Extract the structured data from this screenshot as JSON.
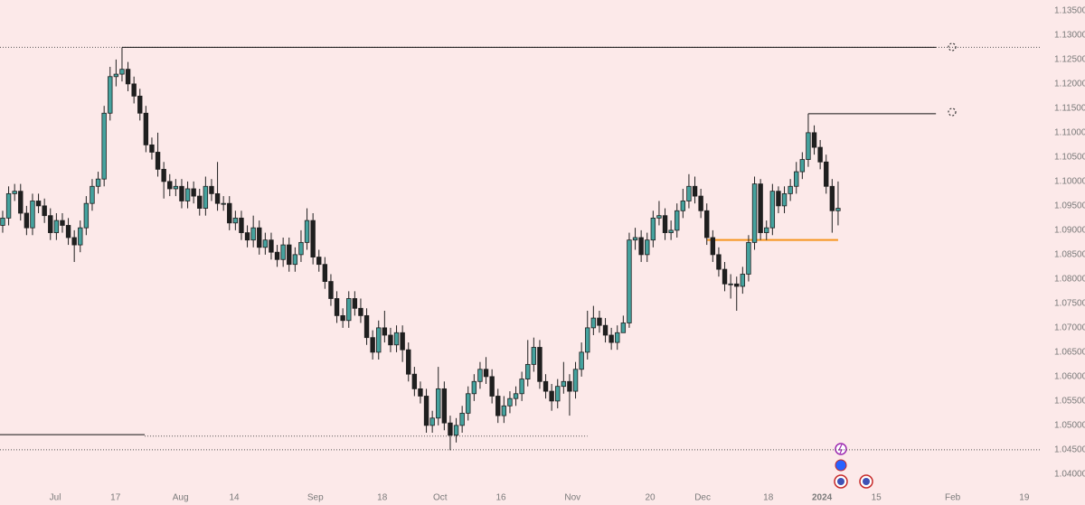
{
  "chart_data": {
    "type": "candlestick",
    "up_color": "#45a29e",
    "down_color": "#1f1f1f",
    "background": "#fce9e9",
    "xlim": [
      -0.45,
      173.8
    ],
    "ylim": [
      1.0372,
      1.1372
    ],
    "yticks": [
      {
        "value": 1.135,
        "label": "1.13500"
      },
      {
        "value": 1.13,
        "label": "1.13000"
      },
      {
        "value": 1.125,
        "label": "1.12500"
      },
      {
        "value": 1.12,
        "label": "1.12000"
      },
      {
        "value": 1.115,
        "label": "1.11500"
      },
      {
        "value": 1.11,
        "label": "1.11000"
      },
      {
        "value": 1.105,
        "label": "1.10500"
      },
      {
        "value": 1.1,
        "label": "1.10000"
      },
      {
        "value": 1.095,
        "label": "1.09500"
      },
      {
        "value": 1.09,
        "label": "1.09000"
      },
      {
        "value": 1.085,
        "label": "1.08500"
      },
      {
        "value": 1.08,
        "label": "1.08000"
      },
      {
        "value": 1.075,
        "label": "1.07500"
      },
      {
        "value": 1.07,
        "label": "1.07000"
      },
      {
        "value": 1.065,
        "label": "1.06500"
      },
      {
        "value": 1.06,
        "label": "1.06000"
      },
      {
        "value": 1.055,
        "label": "1.05500"
      },
      {
        "value": 1.05,
        "label": "1.05000"
      },
      {
        "value": 1.045,
        "label": "1.04500"
      },
      {
        "value": 1.04,
        "label": "1.04000"
      }
    ],
    "xticks": [
      {
        "value": 8.8,
        "label": "Jul"
      },
      {
        "value": 18.9,
        "label": "17"
      },
      {
        "value": 29.8,
        "label": "Aug"
      },
      {
        "value": 38.8,
        "label": "14"
      },
      {
        "value": 52.4,
        "label": "Sep"
      },
      {
        "value": 63.6,
        "label": "18"
      },
      {
        "value": 73.3,
        "label": "Oct"
      },
      {
        "value": 83.5,
        "label": "16"
      },
      {
        "value": 95.5,
        "label": "Nov"
      },
      {
        "value": 108.5,
        "label": "20"
      },
      {
        "value": 117.3,
        "label": "Dec"
      },
      {
        "value": 128.3,
        "label": "18"
      },
      {
        "value": 137.3,
        "label": "2024"
      },
      {
        "value": 146.4,
        "label": "15"
      },
      {
        "value": 159.2,
        "label": "Feb"
      },
      {
        "value": 171.2,
        "label": "19"
      }
    ],
    "lines": [
      {
        "value": 1.1275,
        "style": "dotted",
        "color": "#555555"
      },
      {
        "value": 1.1275,
        "start": 20,
        "end": 156.4,
        "style": "solid",
        "color": "#111111"
      },
      {
        "value": 1.1139,
        "start": 135,
        "end": 156.4,
        "style": "solid",
        "color": "#111111"
      },
      {
        "value": 1.088,
        "start": 118,
        "end": 140,
        "style": "solid",
        "color": "#f7941d"
      },
      {
        "value": 1.0481,
        "end": 23.8,
        "style": "solid",
        "color": "#111111"
      },
      {
        "value": 1.0478,
        "start": 23.8,
        "end": 98,
        "style": "dotted",
        "color": "#555555"
      },
      {
        "value": 1.045,
        "style": "dotted",
        "color": "#555555"
      }
    ],
    "candles": [
      [
        1.091,
        1.094,
        1.0895,
        1.0925
      ],
      [
        1.0925,
        1.099,
        1.091,
        1.0975
      ],
      [
        1.0975,
        1.0995,
        1.096,
        1.098
      ],
      [
        1.098,
        1.0995,
        1.092,
        1.0935
      ],
      [
        1.0935,
        1.095,
        1.089,
        1.0905
      ],
      [
        1.0905,
        1.0975,
        1.089,
        1.096
      ],
      [
        1.096,
        1.0975,
        1.0935,
        1.095
      ],
      [
        1.095,
        1.0965,
        1.0915,
        1.093
      ],
      [
        1.093,
        1.0945,
        1.088,
        1.0895
      ],
      [
        1.0895,
        1.0935,
        1.088,
        1.092
      ],
      [
        1.092,
        1.0935,
        1.0895,
        1.091
      ],
      [
        1.091,
        1.0925,
        1.087,
        1.0885
      ],
      [
        1.0885,
        1.09,
        1.0835,
        1.087
      ],
      [
        1.087,
        1.092,
        1.0855,
        1.0905
      ],
      [
        1.0905,
        1.097,
        1.089,
        1.0955
      ],
      [
        1.0955,
        1.1005,
        1.094,
        1.099
      ],
      [
        1.099,
        1.102,
        1.0975,
        1.1005
      ],
      [
        1.1005,
        1.1155,
        1.099,
        1.114
      ],
      [
        1.114,
        1.1235,
        1.1125,
        1.1215
      ],
      [
        1.1215,
        1.125,
        1.1195,
        1.122
      ],
      [
        1.122,
        1.1275,
        1.1205,
        1.123
      ],
      [
        1.123,
        1.1245,
        1.1185,
        1.12
      ],
      [
        1.12,
        1.1215,
        1.116,
        1.1175
      ],
      [
        1.1175,
        1.119,
        1.1125,
        1.114
      ],
      [
        1.114,
        1.1155,
        1.106,
        1.1075
      ],
      [
        1.1075,
        1.109,
        1.1045,
        1.106
      ],
      [
        1.106,
        1.11,
        1.101,
        1.1025
      ],
      [
        1.1025,
        1.104,
        1.0965,
        1.1
      ],
      [
        1.1,
        1.1015,
        1.097,
        1.0985
      ],
      [
        1.0985,
        1.1005,
        1.097,
        1.099
      ],
      [
        1.099,
        1.1005,
        1.0945,
        1.096
      ],
      [
        1.096,
        1.1,
        1.0945,
        1.0985
      ],
      [
        1.0985,
        1.1,
        1.0955,
        1.097
      ],
      [
        1.097,
        1.0985,
        1.093,
        1.0945
      ],
      [
        1.0945,
        1.101,
        1.093,
        1.099
      ],
      [
        1.099,
        1.1005,
        1.096,
        1.0975
      ],
      [
        1.0975,
        1.104,
        1.094,
        1.0955
      ],
      [
        1.0955,
        1.097,
        1.094,
        1.0955
      ],
      [
        1.0955,
        1.097,
        1.09,
        1.0915
      ],
      [
        1.0915,
        1.094,
        1.09,
        1.0925
      ],
      [
        1.0925,
        1.094,
        1.088,
        1.0895
      ],
      [
        1.0895,
        1.091,
        1.0865,
        1.088
      ],
      [
        1.088,
        1.093,
        1.0865,
        1.0905
      ],
      [
        1.0905,
        1.092,
        1.085,
        1.0865
      ],
      [
        1.0865,
        1.0895,
        1.085,
        1.088
      ],
      [
        1.088,
        1.0895,
        1.084,
        1.0855
      ],
      [
        1.0855,
        1.087,
        1.0825,
        1.084
      ],
      [
        1.084,
        1.0885,
        1.0825,
        1.087
      ],
      [
        1.087,
        1.0885,
        1.0815,
        1.083
      ],
      [
        1.083,
        1.0865,
        1.0815,
        1.085
      ],
      [
        1.085,
        1.09,
        1.0835,
        1.0875
      ],
      [
        1.0875,
        1.0945,
        1.086,
        1.092
      ],
      [
        1.092,
        1.0935,
        1.083,
        1.0845
      ],
      [
        1.0845,
        1.086,
        1.0815,
        1.083
      ],
      [
        1.083,
        1.0845,
        1.078,
        1.0795
      ],
      [
        1.0795,
        1.081,
        1.0745,
        1.076
      ],
      [
        1.076,
        1.0775,
        1.071,
        1.0725
      ],
      [
        1.0725,
        1.074,
        1.07,
        1.0715
      ],
      [
        1.0715,
        1.0775,
        1.07,
        1.076
      ],
      [
        1.076,
        1.0775,
        1.0725,
        1.074
      ],
      [
        1.074,
        1.076,
        1.071,
        1.0725
      ],
      [
        1.0725,
        1.074,
        1.0665,
        1.068
      ],
      [
        1.068,
        1.0695,
        1.0635,
        1.065
      ],
      [
        1.065,
        1.0715,
        1.0635,
        1.07
      ],
      [
        1.07,
        1.0735,
        1.067,
        1.0685
      ],
      [
        1.0685,
        1.07,
        1.065,
        1.0665
      ],
      [
        1.0665,
        1.0705,
        1.065,
        1.069
      ],
      [
        1.069,
        1.0705,
        1.063,
        1.0655
      ],
      [
        1.0655,
        1.067,
        1.059,
        1.0605
      ],
      [
        1.0605,
        1.062,
        1.056,
        1.0575
      ],
      [
        1.0575,
        1.059,
        1.0545,
        1.056
      ],
      [
        1.056,
        1.0575,
        1.0485,
        1.05
      ],
      [
        1.05,
        1.053,
        1.0485,
        1.0515
      ],
      [
        1.0515,
        1.062,
        1.05,
        1.0575
      ],
      [
        1.0575,
        1.059,
        1.049,
        1.0505
      ],
      [
        1.0505,
        1.052,
        1.0449,
        1.048
      ],
      [
        1.048,
        1.0515,
        1.0465,
        1.05
      ],
      [
        1.05,
        1.054,
        1.0485,
        1.0525
      ],
      [
        1.0525,
        1.058,
        1.051,
        1.0565
      ],
      [
        1.0565,
        1.0605,
        1.055,
        1.059
      ],
      [
        1.059,
        1.063,
        1.0575,
        1.0615
      ],
      [
        1.0615,
        1.064,
        1.0585,
        1.06
      ],
      [
        1.06,
        1.0615,
        1.0545,
        1.056
      ],
      [
        1.056,
        1.0575,
        1.0505,
        1.052
      ],
      [
        1.052,
        1.056,
        1.0505,
        1.054
      ],
      [
        1.054,
        1.057,
        1.0525,
        1.0555
      ],
      [
        1.0555,
        1.058,
        1.054,
        1.0565
      ],
      [
        1.0565,
        1.061,
        1.055,
        1.0595
      ],
      [
        1.0595,
        1.0675,
        1.058,
        1.0625
      ],
      [
        1.0625,
        1.068,
        1.061,
        1.066
      ],
      [
        1.066,
        1.0675,
        1.0575,
        1.059
      ],
      [
        1.059,
        1.0605,
        1.0555,
        1.057
      ],
      [
        1.057,
        1.0585,
        1.053,
        1.055
      ],
      [
        1.055,
        1.0595,
        1.0535,
        1.058
      ],
      [
        1.058,
        1.063,
        1.0565,
        1.059
      ],
      [
        1.059,
        1.0605,
        1.052,
        1.057
      ],
      [
        1.057,
        1.063,
        1.0555,
        1.0615
      ],
      [
        1.0615,
        1.067,
        1.06,
        1.065
      ],
      [
        1.065,
        1.0735,
        1.0635,
        1.07
      ],
      [
        1.07,
        1.0745,
        1.0685,
        1.072
      ],
      [
        1.072,
        1.0735,
        1.069,
        1.0705
      ],
      [
        1.0705,
        1.072,
        1.067,
        1.0685
      ],
      [
        1.0685,
        1.07,
        1.0655,
        1.067
      ],
      [
        1.067,
        1.0705,
        1.0655,
        1.069
      ],
      [
        1.069,
        1.0725,
        1.069,
        1.071
      ],
      [
        1.071,
        1.0895,
        1.07,
        1.088
      ],
      [
        1.088,
        1.0905,
        1.086,
        1.0885
      ],
      [
        1.0885,
        1.09,
        1.0835,
        1.085
      ],
      [
        1.085,
        1.0895,
        1.0835,
        1.088
      ],
      [
        1.088,
        1.094,
        1.0865,
        1.0925
      ],
      [
        1.0925,
        1.096,
        1.091,
        1.093
      ],
      [
        1.093,
        1.0945,
        1.088,
        1.0895
      ],
      [
        1.0895,
        1.092,
        1.088,
        1.09
      ],
      [
        1.09,
        1.0955,
        1.0885,
        1.094
      ],
      [
        1.094,
        1.0985,
        1.0925,
        1.096
      ],
      [
        1.096,
        1.1015,
        1.0945,
        1.099
      ],
      [
        1.099,
        1.101,
        1.0955,
        1.097
      ],
      [
        1.097,
        1.0985,
        1.0925,
        1.094
      ],
      [
        1.094,
        1.0955,
        1.087,
        1.0885
      ],
      [
        1.0885,
        1.09,
        1.0835,
        1.085
      ],
      [
        1.085,
        1.0865,
        1.0805,
        1.082
      ],
      [
        1.082,
        1.0835,
        1.0775,
        1.079
      ],
      [
        1.079,
        1.081,
        1.076,
        1.079
      ],
      [
        1.079,
        1.0805,
        1.0735,
        1.0785
      ],
      [
        1.0785,
        1.0825,
        1.077,
        1.081
      ],
      [
        1.081,
        1.089,
        1.0795,
        1.0875
      ],
      [
        1.0875,
        1.101,
        1.086,
        1.0995
      ],
      [
        1.0995,
        1.1005,
        1.088,
        1.0895
      ],
      [
        1.0895,
        1.092,
        1.088,
        1.0905
      ],
      [
        1.0905,
        1.0995,
        1.089,
        1.098
      ],
      [
        1.098,
        1.099,
        1.0935,
        1.095
      ],
      [
        1.095,
        1.099,
        1.0935,
        1.0975
      ],
      [
        1.0975,
        1.1005,
        1.096,
        1.099
      ],
      [
        1.099,
        1.104,
        1.0975,
        1.102
      ],
      [
        1.102,
        1.106,
        1.1005,
        1.1045
      ],
      [
        1.1045,
        1.1139,
        1.103,
        1.11
      ],
      [
        1.11,
        1.1115,
        1.1055,
        1.107
      ],
      [
        1.107,
        1.1085,
        1.1025,
        1.104
      ],
      [
        1.104,
        1.1055,
        1.0975,
        1.099
      ],
      [
        1.099,
        1.1005,
        1.0895,
        1.094
      ],
      [
        1.094,
        1.1,
        1.091,
        1.0945
      ]
    ]
  }
}
